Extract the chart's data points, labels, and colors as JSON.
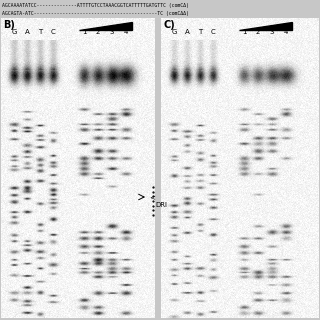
{
  "seq_line1": "AGCAAAATATCC--------------ATTTTGTCCTAAACGGTCATTTTTGATGTTC (comCΔ)",
  "seq_line2": "AGCAGTA-ATC-------------------------------------------TC (comCΔΔ)",
  "panel_B": "B)",
  "panel_C": "C)",
  "seq_labels": [
    "G",
    "A",
    "T",
    "C"
  ],
  "lane_labels": [
    "1",
    "2",
    "3",
    "4"
  ],
  "DRI_label": "DRI",
  "bg_color": "#b8b8b8",
  "gel_bg": "#f0f0f0",
  "band_dark": 0.05,
  "band_medium": 0.35,
  "band_light": 0.7
}
